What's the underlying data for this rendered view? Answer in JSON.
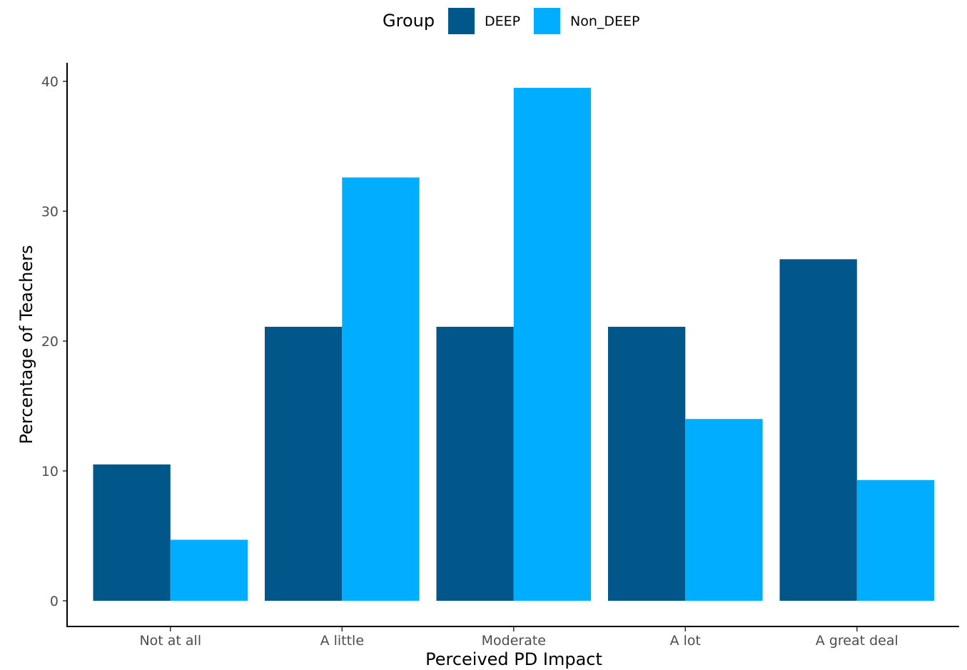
{
  "chart_data": {
    "type": "bar",
    "title": "",
    "xlabel": "Perceived PD Impact",
    "ylabel": "Percentage of Teachers",
    "categories": [
      "Not at all",
      "A little",
      "Moderate",
      "A lot",
      "A great deal"
    ],
    "series": [
      {
        "name": "DEEP",
        "color": "#01568a",
        "values": [
          10.5,
          21.1,
          21.1,
          21.1,
          26.3
        ]
      },
      {
        "name": "Non_DEEP",
        "color": "#00adff",
        "values": [
          4.7,
          32.6,
          39.5,
          14.0,
          9.3
        ]
      }
    ],
    "ylim": [
      0,
      42
    ],
    "yticks": [
      "0",
      "10",
      "20",
      "30",
      "40"
    ],
    "grid": false,
    "legend": {
      "title": "Group",
      "position": "top"
    }
  }
}
